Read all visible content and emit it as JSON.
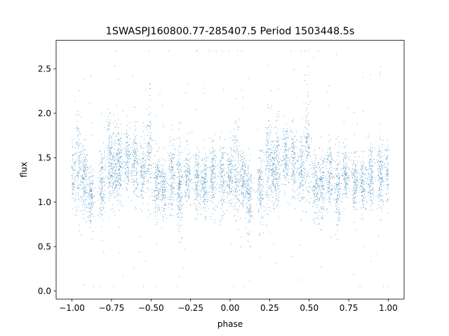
{
  "chart_data": {
    "type": "scatter",
    "title": "1SWASPJ160800.77-285407.5 Period 1503448.5s",
    "xlabel": "phase",
    "ylabel": "flux",
    "xlim": [
      -1.1,
      1.1
    ],
    "ylim": [
      -0.09,
      2.82
    ],
    "x_ticks": [
      -1.0,
      -0.75,
      -0.5,
      -0.25,
      0.0,
      0.25,
      0.5,
      0.75,
      1.0
    ],
    "x_tick_labels": [
      "−1.00",
      "−0.75",
      "−0.50",
      "−0.25",
      "0.00",
      "0.25",
      "0.50",
      "0.75",
      "1.00"
    ],
    "y_ticks": [
      0.0,
      0.5,
      1.0,
      1.5,
      2.0,
      2.5
    ],
    "y_tick_labels": [
      "0.0",
      "0.5",
      "1.0",
      "1.5",
      "2.0",
      "2.5"
    ],
    "grid": false,
    "legend": "none",
    "marker_color": "#1f77b4",
    "series": [
      {
        "x_range": [
          -1.0,
          1.0
        ],
        "folded_period_phase": 1.0,
        "typical_flux": 1.3,
        "flux_spread": 0.25,
        "max_flux": 2.7,
        "min_flux": 0.05,
        "point_count": 6000
      }
    ]
  }
}
